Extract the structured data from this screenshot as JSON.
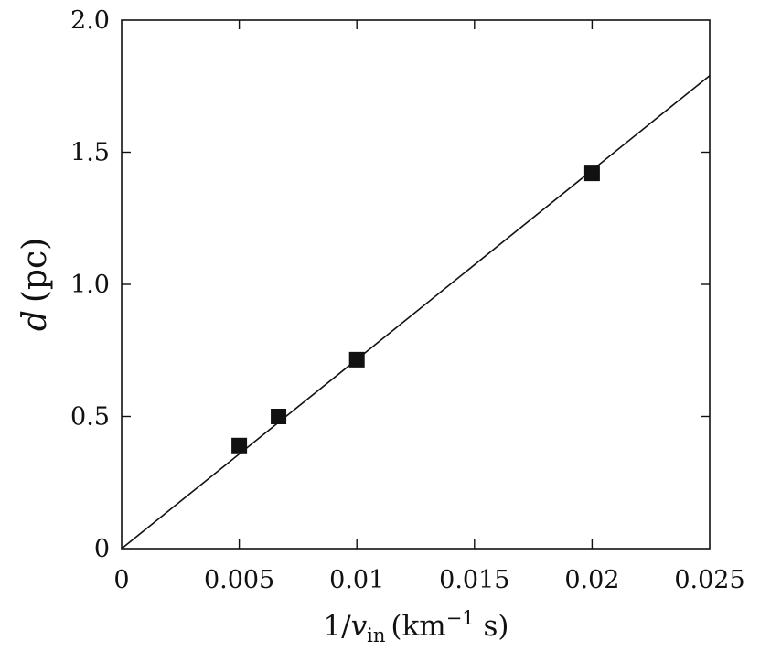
{
  "chart_data": {
    "type": "scatter",
    "x_ticks": [
      0,
      0.005,
      0.01,
      0.015,
      0.02,
      0.025
    ],
    "x_tick_labels": [
      "0",
      "0.005",
      "0.01",
      "0.015",
      "0.02",
      "0.025"
    ],
    "y_ticks": [
      0,
      0.5,
      1.0,
      1.5,
      2.0
    ],
    "y_tick_labels": [
      "0",
      "0.5",
      "1.0",
      "1.5",
      "2.0"
    ],
    "xlim": [
      0,
      0.025
    ],
    "ylim": [
      0,
      2.0
    ],
    "xlabel": {
      "main": "1/",
      "var": "v",
      "sub": "in",
      "unit_open": "(km",
      "unit_sup": "−1",
      "unit_close": " s)"
    },
    "ylabel": {
      "var": "d",
      "unit": "(pc)"
    },
    "series": [
      {
        "x": [
          0.005,
          0.00667,
          0.01,
          0.02
        ],
        "y": [
          0.39,
          0.5,
          0.715,
          1.42
        ]
      }
    ],
    "fit_line": {
      "x": [
        0,
        0.025
      ],
      "y": [
        0,
        1.79
      ]
    },
    "grid": false,
    "colors": {
      "marker": "#111111",
      "line": "#111111",
      "axis": "#111111"
    }
  }
}
